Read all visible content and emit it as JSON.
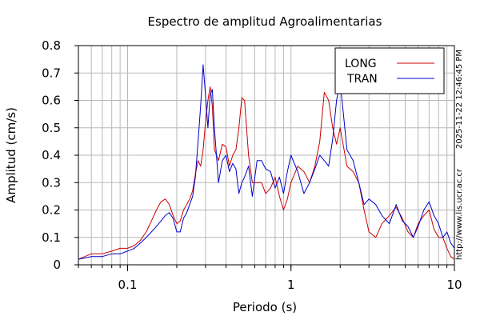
{
  "chart_data": {
    "type": "line",
    "title": "Espectro de amplitud Agroalimentarias",
    "xlabel": "Periodo (s)",
    "ylabel": "Amplitud (cm/s)",
    "x_scale": "log",
    "xlim": [
      0.05,
      10
    ],
    "ylim": [
      0,
      0.8
    ],
    "grid": true,
    "legend_position": "top-right",
    "x_ticks": [
      {
        "value": 0.1,
        "label": "0.1"
      },
      {
        "value": 1,
        "label": "1"
      },
      {
        "value": 10,
        "label": "10"
      }
    ],
    "y_ticks": [
      {
        "value": 0,
        "label": "0"
      },
      {
        "value": 0.1,
        "label": "0.1"
      },
      {
        "value": 0.2,
        "label": "0.2"
      },
      {
        "value": 0.3,
        "label": "0.3"
      },
      {
        "value": 0.4,
        "label": "0.4"
      },
      {
        "value": 0.5,
        "label": "0.5"
      },
      {
        "value": 0.6,
        "label": "0.6"
      },
      {
        "value": 0.7,
        "label": "0.7"
      },
      {
        "value": 0.8,
        "label": "0.8"
      }
    ],
    "series": [
      {
        "name": "LONG",
        "color": "#cc0000",
        "x": [
          0.05,
          0.06,
          0.07,
          0.08,
          0.09,
          0.1,
          0.11,
          0.12,
          0.13,
          0.14,
          0.15,
          0.16,
          0.17,
          0.18,
          0.19,
          0.2,
          0.21,
          0.22,
          0.23,
          0.24,
          0.25,
          0.26,
          0.27,
          0.28,
          0.29,
          0.3,
          0.31,
          0.32,
          0.33,
          0.34,
          0.36,
          0.38,
          0.4,
          0.42,
          0.44,
          0.46,
          0.48,
          0.5,
          0.52,
          0.55,
          0.58,
          0.62,
          0.66,
          0.7,
          0.75,
          0.8,
          0.85,
          0.9,
          0.95,
          1.0,
          1.1,
          1.2,
          1.3,
          1.4,
          1.5,
          1.6,
          1.7,
          1.8,
          1.9,
          2.0,
          2.2,
          2.4,
          2.6,
          2.8,
          3.0,
          3.3,
          3.6,
          4.0,
          4.4,
          4.8,
          5.2,
          5.6,
          6.0,
          6.5,
          7.0,
          7.5,
          8.0,
          8.5,
          9.0,
          9.5,
          10.0
        ],
        "y": [
          0.02,
          0.04,
          0.04,
          0.05,
          0.06,
          0.06,
          0.07,
          0.09,
          0.12,
          0.16,
          0.2,
          0.23,
          0.24,
          0.22,
          0.18,
          0.15,
          0.16,
          0.2,
          0.22,
          0.24,
          0.27,
          0.33,
          0.38,
          0.36,
          0.42,
          0.52,
          0.6,
          0.65,
          0.58,
          0.42,
          0.38,
          0.44,
          0.43,
          0.36,
          0.4,
          0.42,
          0.5,
          0.61,
          0.6,
          0.4,
          0.3,
          0.3,
          0.3,
          0.26,
          0.28,
          0.32,
          0.25,
          0.2,
          0.24,
          0.3,
          0.36,
          0.34,
          0.3,
          0.36,
          0.45,
          0.63,
          0.6,
          0.5,
          0.44,
          0.5,
          0.36,
          0.34,
          0.3,
          0.2,
          0.12,
          0.1,
          0.15,
          0.18,
          0.21,
          0.17,
          0.12,
          0.1,
          0.15,
          0.18,
          0.2,
          0.13,
          0.1,
          0.1,
          0.06,
          0.03,
          0.02
        ]
      },
      {
        "name": "TRAN",
        "color": "#0000cc",
        "x": [
          0.05,
          0.06,
          0.07,
          0.08,
          0.09,
          0.1,
          0.11,
          0.12,
          0.13,
          0.14,
          0.15,
          0.16,
          0.17,
          0.18,
          0.19,
          0.2,
          0.21,
          0.22,
          0.23,
          0.24,
          0.25,
          0.26,
          0.27,
          0.28,
          0.29,
          0.3,
          0.31,
          0.32,
          0.33,
          0.34,
          0.36,
          0.38,
          0.4,
          0.42,
          0.44,
          0.46,
          0.48,
          0.5,
          0.52,
          0.55,
          0.58,
          0.62,
          0.66,
          0.7,
          0.75,
          0.8,
          0.85,
          0.9,
          0.95,
          1.0,
          1.1,
          1.2,
          1.3,
          1.4,
          1.5,
          1.6,
          1.7,
          1.8,
          1.9,
          2.0,
          2.2,
          2.4,
          2.6,
          2.8,
          3.0,
          3.3,
          3.6,
          4.0,
          4.4,
          4.8,
          5.2,
          5.6,
          6.0,
          6.5,
          7.0,
          7.5,
          8.0,
          8.5,
          9.0,
          9.5,
          10.0
        ],
        "y": [
          0.02,
          0.03,
          0.03,
          0.04,
          0.04,
          0.05,
          0.06,
          0.08,
          0.1,
          0.12,
          0.14,
          0.16,
          0.18,
          0.19,
          0.17,
          0.12,
          0.12,
          0.17,
          0.19,
          0.22,
          0.25,
          0.32,
          0.45,
          0.58,
          0.73,
          0.62,
          0.5,
          0.62,
          0.64,
          0.5,
          0.3,
          0.38,
          0.4,
          0.34,
          0.37,
          0.35,
          0.26,
          0.3,
          0.32,
          0.36,
          0.25,
          0.38,
          0.38,
          0.35,
          0.34,
          0.28,
          0.32,
          0.26,
          0.34,
          0.4,
          0.34,
          0.26,
          0.3,
          0.35,
          0.4,
          0.38,
          0.36,
          0.46,
          0.6,
          0.67,
          0.42,
          0.38,
          0.3,
          0.22,
          0.24,
          0.22,
          0.18,
          0.15,
          0.22,
          0.16,
          0.14,
          0.1,
          0.14,
          0.2,
          0.23,
          0.18,
          0.15,
          0.1,
          0.12,
          0.08,
          0.06
        ]
      }
    ]
  },
  "side_text": {
    "timestamp": "2025-11-22 12:46:45 PM",
    "url": "http://www.lis.ucr.ac.cr"
  }
}
